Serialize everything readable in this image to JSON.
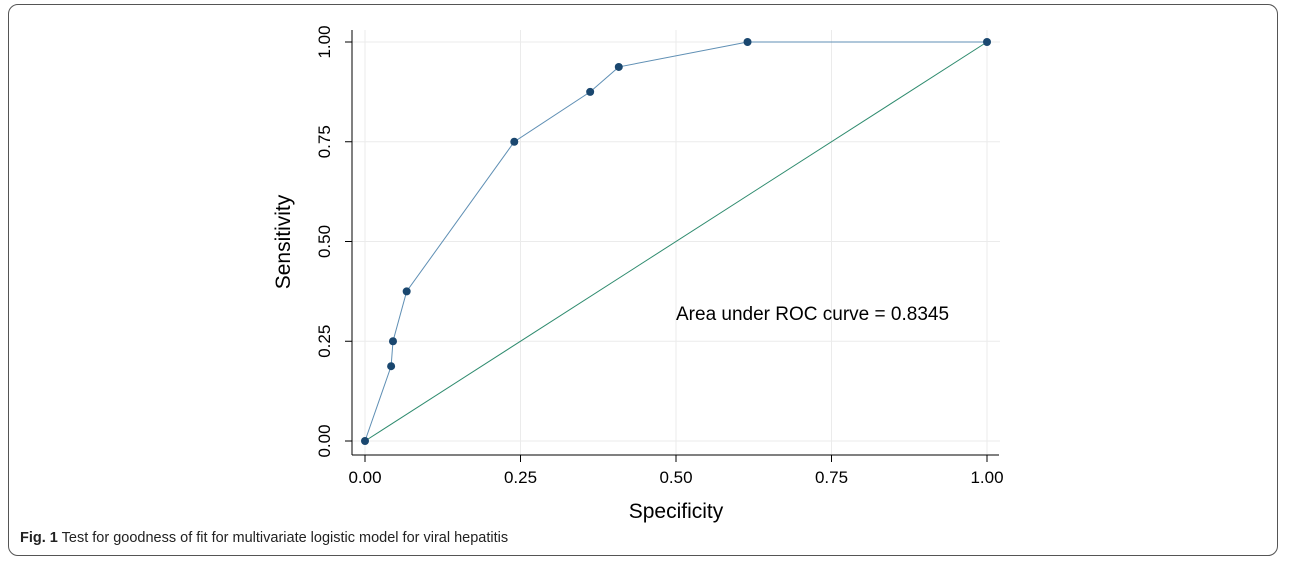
{
  "caption": {
    "label": "Fig. 1",
    "text": "Test for goodness of fit for multivariate logistic model for viral hepatitis"
  },
  "chart_data": {
    "type": "line",
    "xlabel": "Specificity",
    "ylabel": "Sensitivity",
    "xlim": [
      0,
      1
    ],
    "ylim": [
      0,
      1
    ],
    "xticks": [
      0,
      0.25,
      0.5,
      0.75,
      1
    ],
    "yticks": [
      0,
      0.25,
      0.5,
      0.75,
      1
    ],
    "xtick_labels": [
      "0.00",
      "0.25",
      "0.50",
      "0.75",
      "1.00"
    ],
    "ytick_labels": [
      "0.00",
      "0.25",
      "0.50",
      "0.75",
      "1.00"
    ],
    "grid": true,
    "annotation": "Area under ROC curve = 0.8345",
    "series": [
      {
        "points": [
          [
            0.0,
            0.0
          ],
          [
            0.042,
            0.1875
          ],
          [
            0.045,
            0.25
          ],
          [
            0.067,
            0.375
          ],
          [
            0.24,
            0.75
          ],
          [
            0.362,
            0.875
          ],
          [
            0.408,
            0.9375
          ],
          [
            0.615,
            1.0
          ],
          [
            1.0,
            1.0
          ]
        ],
        "line_color": "#5f8fb4",
        "marker_color": "#1a476f"
      },
      {
        "points": [
          [
            0,
            0
          ],
          [
            1,
            1
          ]
        ],
        "line_color": "#2e8b6e"
      }
    ]
  }
}
